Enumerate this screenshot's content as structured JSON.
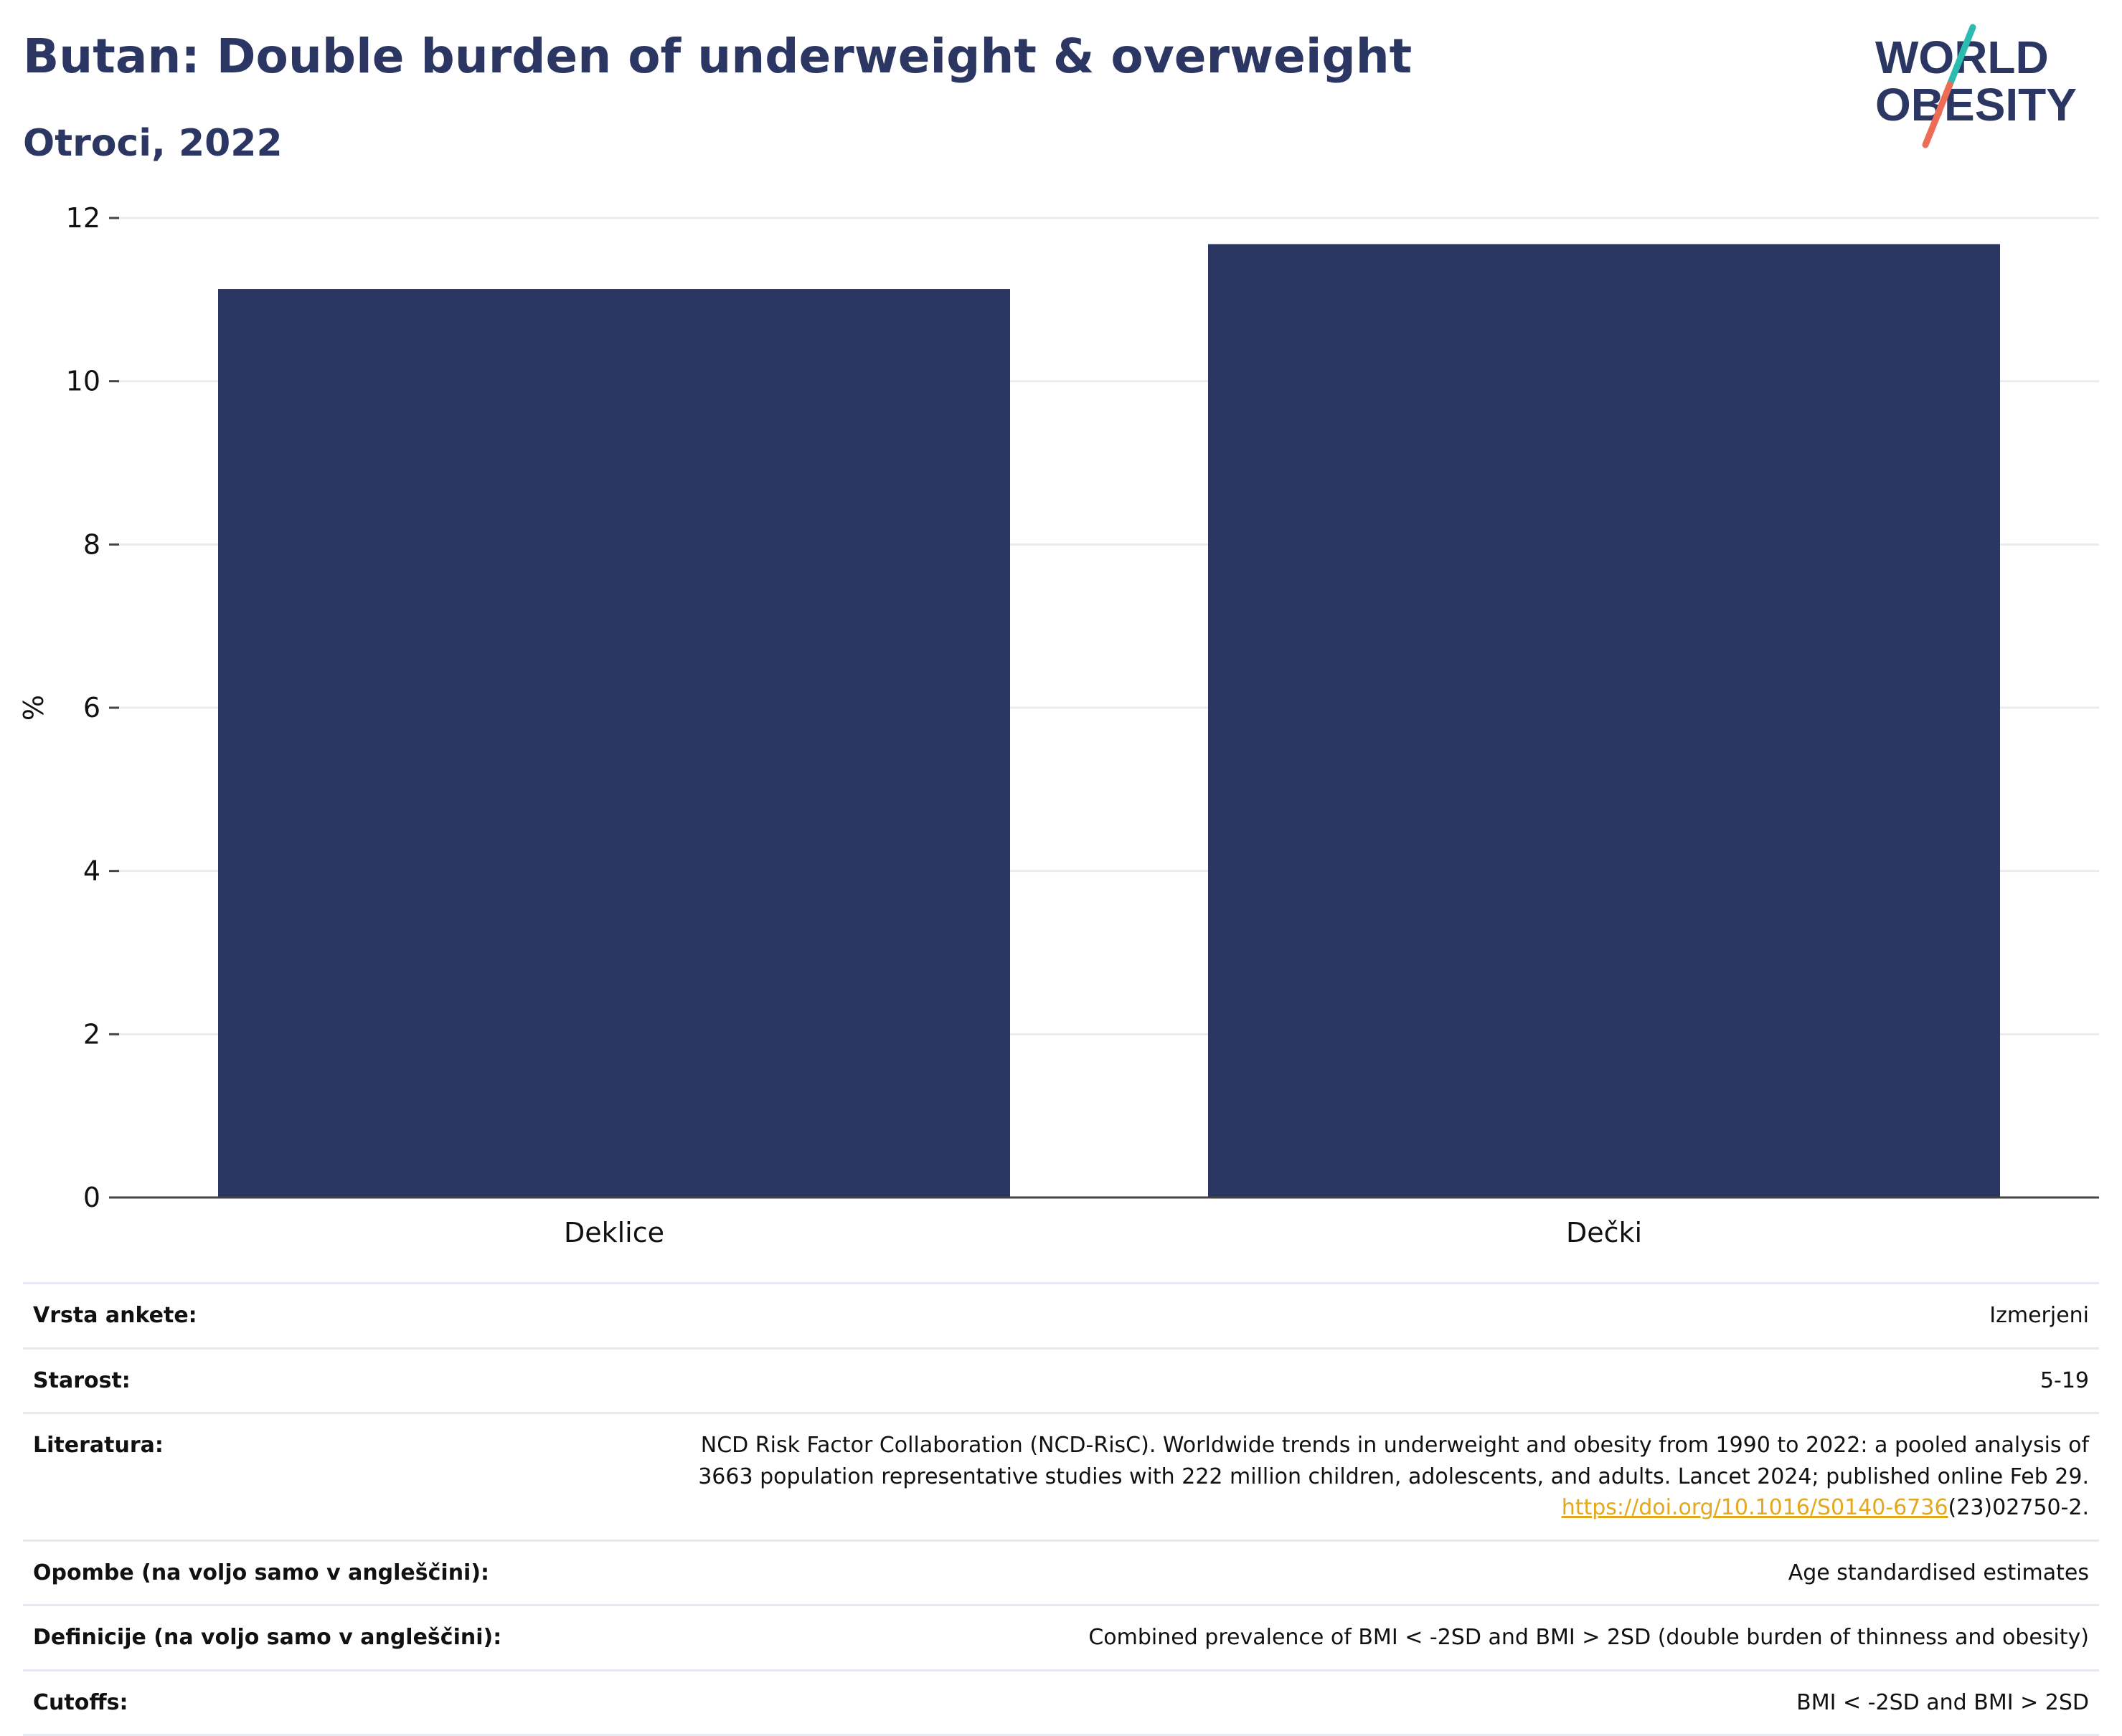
{
  "header": {
    "title": "Butan: Double burden of underweight & overweight",
    "subtitle": "Otroci, 2022"
  },
  "logo": {
    "line1": "WORLD",
    "line2": "OBESITY",
    "text_color": "#2b3663",
    "accent_colors": [
      "#2bbbb0",
      "#ec6c55"
    ]
  },
  "chart_data": {
    "type": "bar",
    "categories": [
      "Deklice",
      "Dečki"
    ],
    "values": [
      11.13,
      11.68
    ],
    "ylabel": "%",
    "ylim": [
      0,
      12
    ],
    "yticks": [
      0,
      2,
      4,
      6,
      8,
      10,
      12
    ],
    "grid": true,
    "bar_color": "#2b3663"
  },
  "meta": {
    "survey_type": {
      "label": "Vrsta ankete:",
      "value": "Izmerjeni"
    },
    "age": {
      "label": "Starost:",
      "value": "5-19"
    },
    "literature": {
      "label": "Literatura:",
      "line1": "NCD Risk Factor Collaboration (NCD-RisC). Worldwide trends in underweight and obesity from 1990 to 2022: a pooled analysis of",
      "line2": "3663 population representative studies with 222 million children, adolescents, and adults. Lancet 2024; published online Feb 29.",
      "link": "https://doi.org/10.1016/S0140-6736",
      "link_suffix": "(23)02750-2."
    },
    "notes": {
      "label": "Opombe (na voljo samo v angleščini):",
      "value": "Age standardised estimates"
    },
    "definitions": {
      "label": "Definicije (na voljo samo v angleščini):",
      "value": "Combined prevalence of BMI < -2SD and BMI > 2SD (double burden of thinness and obesity)"
    },
    "cutoffs": {
      "label": "Cutoffs:",
      "value": "BMI < -2SD and BMI > 2SD"
    }
  }
}
